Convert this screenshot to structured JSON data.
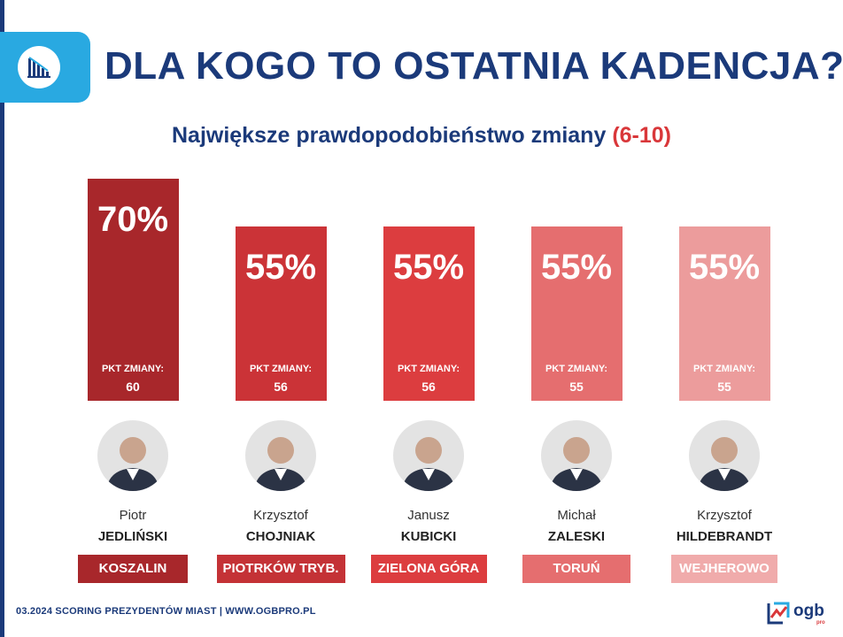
{
  "title": "DLA KOGO TO OSTATNIA KADENCJA?",
  "subtitle": {
    "text": "Największe prawdopodobieństwo zmiany",
    "range": "(6-10)"
  },
  "footer": "03.2024 SCORING PREZYDENTÓW MIAST | WWW.OGBPRO.PL",
  "brand": {
    "word": "ogb",
    "sub": "pro"
  },
  "icons": {
    "header": "bar-chart-declining-icon",
    "brand": "ogb-logo-icon"
  },
  "colors": {
    "title": "#1b3a7a",
    "accent_blue": "#29a9e1",
    "range_red": "#d9373a"
  },
  "chart_data": {
    "type": "bar",
    "title": "Największe prawdopodobieństwo zmiany (6-10)",
    "categories": [
      "KOSZALIN",
      "PIOTRKÓW TRYB.",
      "ZIELONA GÓRA",
      "TORUŃ",
      "WEJHEROWO"
    ],
    "series": [
      {
        "values": [
          70,
          55,
          55,
          55,
          55
        ]
      }
    ],
    "ylim": [
      0,
      70
    ],
    "grid": false,
    "items": [
      {
        "percent_label": "70%",
        "percent": 70,
        "pkt_label": "PKT ZMIANY:",
        "pkt": "60",
        "first_name": "Piotr",
        "last_name": "JEDLIŃSKI",
        "city": "KOSZALIN",
        "color": "#a8272b",
        "city_color": "#a8272b"
      },
      {
        "percent_label": "55%",
        "percent": 55,
        "pkt_label": "PKT ZMIANY:",
        "pkt": "56",
        "first_name": "Krzysztof",
        "last_name": "CHOJNIAK",
        "city": "PIOTRKÓW TRYB.",
        "color": "#cb3337",
        "city_color": "#c43236"
      },
      {
        "percent_label": "55%",
        "percent": 55,
        "pkt_label": "PKT ZMIANY:",
        "pkt": "56",
        "first_name": "Janusz",
        "last_name": "KUBICKI",
        "city": "ZIELONA GÓRA",
        "color": "#dc3d3f",
        "city_color": "#dc3d3f"
      },
      {
        "percent_label": "55%",
        "percent": 55,
        "pkt_label": "PKT ZMIANY:",
        "pkt": "55",
        "first_name": "Michał",
        "last_name": "ZALESKI",
        "city": "TORUŃ",
        "color": "#e56e6f",
        "city_color": "#e56e6f"
      },
      {
        "percent_label": "55%",
        "percent": 55,
        "pkt_label": "PKT ZMIANY:",
        "pkt": "55",
        "first_name": "Krzysztof",
        "last_name": "HILDEBRANDT",
        "city": "WEJHEROWO",
        "color": "#ec9c9c",
        "city_color": "#f0abab"
      }
    ]
  }
}
